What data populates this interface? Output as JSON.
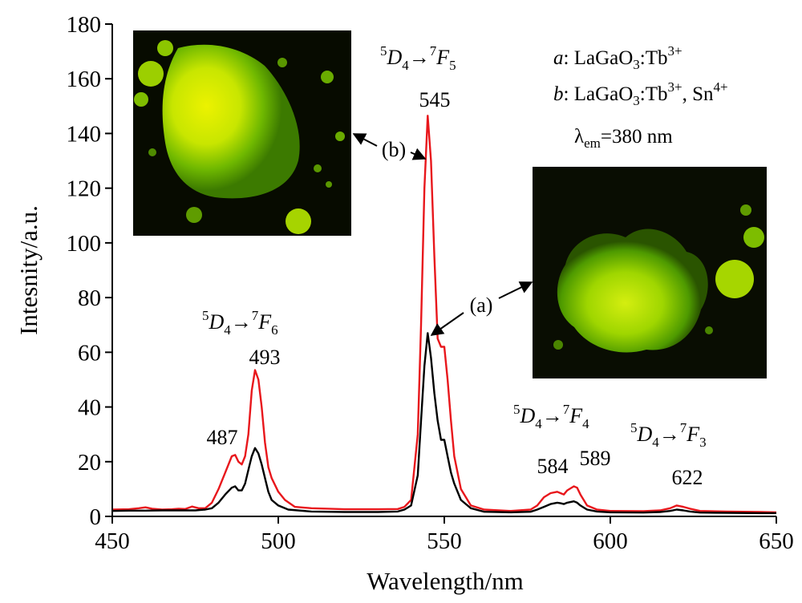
{
  "chart_data": {
    "type": "line",
    "xlabel": "Wavelength/nm",
    "ylabel": "Intesnity/a.u.",
    "xlim": [
      450,
      650
    ],
    "ylim": [
      0,
      180
    ],
    "xticks": [
      450,
      500,
      550,
      600,
      650
    ],
    "yticks": [
      0,
      20,
      40,
      60,
      80,
      100,
      120,
      140,
      160,
      180
    ],
    "grid": false,
    "series": [
      {
        "name": "b",
        "color": "#e8171c",
        "points": [
          [
            450,
            2.5
          ],
          [
            455,
            2.6
          ],
          [
            458,
            3
          ],
          [
            460,
            3.3
          ],
          [
            462,
            2.8
          ],
          [
            465,
            2.5
          ],
          [
            468,
            2.6
          ],
          [
            470,
            2.8
          ],
          [
            472,
            2.7
          ],
          [
            474,
            3.6
          ],
          [
            476,
            3
          ],
          [
            478,
            3
          ],
          [
            480,
            5
          ],
          [
            482,
            10
          ],
          [
            484,
            16
          ],
          [
            486,
            22
          ],
          [
            487,
            22.5
          ],
          [
            488,
            20
          ],
          [
            489,
            19
          ],
          [
            490,
            22
          ],
          [
            491,
            30
          ],
          [
            492,
            46
          ],
          [
            493,
            53.5
          ],
          [
            494,
            50
          ],
          [
            495,
            40
          ],
          [
            496,
            27
          ],
          [
            497,
            18
          ],
          [
            498,
            14
          ],
          [
            500,
            9
          ],
          [
            502,
            6
          ],
          [
            505,
            3.5
          ],
          [
            510,
            3
          ],
          [
            520,
            2.6
          ],
          [
            530,
            2.6
          ],
          [
            536,
            2.7
          ],
          [
            538,
            3.5
          ],
          [
            540,
            6
          ],
          [
            542,
            30
          ],
          [
            543,
            70
          ],
          [
            544,
            120
          ],
          [
            545,
            146.5
          ],
          [
            546,
            130
          ],
          [
            547,
            95
          ],
          [
            548,
            65
          ],
          [
            549,
            62
          ],
          [
            550,
            62
          ],
          [
            551,
            50
          ],
          [
            552,
            35
          ],
          [
            553,
            22
          ],
          [
            555,
            10
          ],
          [
            558,
            4
          ],
          [
            562,
            2.5
          ],
          [
            570,
            2
          ],
          [
            576,
            2.5
          ],
          [
            578,
            4
          ],
          [
            580,
            7
          ],
          [
            582,
            8.5
          ],
          [
            584,
            9
          ],
          [
            585,
            8.5
          ],
          [
            586,
            8
          ],
          [
            587,
            9.5
          ],
          [
            589,
            11
          ],
          [
            590,
            10.5
          ],
          [
            591,
            8
          ],
          [
            593,
            4
          ],
          [
            596,
            2.5
          ],
          [
            600,
            2
          ],
          [
            610,
            1.9
          ],
          [
            615,
            2.2
          ],
          [
            618,
            3
          ],
          [
            620,
            4
          ],
          [
            622,
            3.5
          ],
          [
            624,
            2.8
          ],
          [
            627,
            2
          ],
          [
            635,
            1.8
          ],
          [
            645,
            1.6
          ],
          [
            650,
            1.5
          ]
        ]
      },
      {
        "name": "a",
        "color": "#000000",
        "points": [
          [
            450,
            2
          ],
          [
            455,
            2.1
          ],
          [
            460,
            2.1
          ],
          [
            465,
            2.2
          ],
          [
            470,
            2.2
          ],
          [
            475,
            2.2
          ],
          [
            478,
            2.5
          ],
          [
            480,
            3
          ],
          [
            482,
            5
          ],
          [
            484,
            8
          ],
          [
            486,
            10.5
          ],
          [
            487,
            11
          ],
          [
            488,
            9.5
          ],
          [
            489,
            9.5
          ],
          [
            490,
            12
          ],
          [
            491,
            17
          ],
          [
            492,
            22
          ],
          [
            493,
            25
          ],
          [
            494,
            23
          ],
          [
            495,
            19
          ],
          [
            496,
            14
          ],
          [
            497,
            9
          ],
          [
            498,
            6
          ],
          [
            500,
            4
          ],
          [
            503,
            2.5
          ],
          [
            510,
            1.8
          ],
          [
            520,
            1.6
          ],
          [
            530,
            1.6
          ],
          [
            536,
            1.8
          ],
          [
            538,
            2.5
          ],
          [
            540,
            4
          ],
          [
            542,
            15
          ],
          [
            543,
            35
          ],
          [
            544,
            55
          ],
          [
            545,
            67
          ],
          [
            546,
            58
          ],
          [
            547,
            45
          ],
          [
            548,
            35
          ],
          [
            549,
            28
          ],
          [
            550,
            28
          ],
          [
            551,
            22
          ],
          [
            552,
            16
          ],
          [
            553,
            12
          ],
          [
            555,
            6
          ],
          [
            558,
            3
          ],
          [
            562,
            1.7
          ],
          [
            570,
            1.5
          ],
          [
            576,
            1.7
          ],
          [
            578,
            2.5
          ],
          [
            580,
            3.5
          ],
          [
            582,
            4.5
          ],
          [
            584,
            5
          ],
          [
            585,
            4.8
          ],
          [
            586,
            4.5
          ],
          [
            587,
            5
          ],
          [
            589,
            5.5
          ],
          [
            590,
            5
          ],
          [
            591,
            4
          ],
          [
            593,
            2.5
          ],
          [
            596,
            1.8
          ],
          [
            600,
            1.5
          ],
          [
            610,
            1.4
          ],
          [
            615,
            1.6
          ],
          [
            618,
            2
          ],
          [
            620,
            2.5
          ],
          [
            622,
            2.2
          ],
          [
            624,
            1.8
          ],
          [
            627,
            1.4
          ],
          [
            635,
            1.3
          ],
          [
            645,
            1.2
          ],
          [
            650,
            1.2
          ]
        ]
      }
    ],
    "peak_labels": [
      "487",
      "493",
      "545",
      "584",
      "589",
      "622"
    ],
    "transitions": {
      "t6": {
        "sup1": "5",
        "D": "D",
        "sub1": "4",
        "arrow": "→",
        "sup2": "7",
        "F": "F",
        "sub2": "6"
      },
      "t5": {
        "sup1": "5",
        "D": "D",
        "sub1": "4",
        "arrow": "→",
        "sup2": "7",
        "F": "F",
        "sub2": "5"
      },
      "t4": {
        "sup1": "5",
        "D": "D",
        "sub1": "4",
        "arrow": "→",
        "sup2": "7",
        "F": "F",
        "sub2": "4"
      },
      "t3": {
        "sup1": "5",
        "D": "D",
        "sub1": "4",
        "arrow": "→",
        "sup2": "7",
        "F": "F",
        "sub2": "3"
      }
    },
    "pointer_labels": [
      "(b)",
      "(a)"
    ],
    "legend": {
      "a": {
        "tag": "a",
        "text": ": LaGaO",
        "sub": "3",
        "text2": ":Tb",
        "sup": "3+"
      },
      "b": {
        "tag": "b",
        "text": ": LaGaO",
        "sub": "3",
        "text2": ":Tb",
        "sup": "3+",
        "text3": ", Sn",
        "sup2": "4+"
      },
      "excitation": {
        "lambda": "λ",
        "sub": "em",
        "value": "=380 nm"
      }
    }
  }
}
